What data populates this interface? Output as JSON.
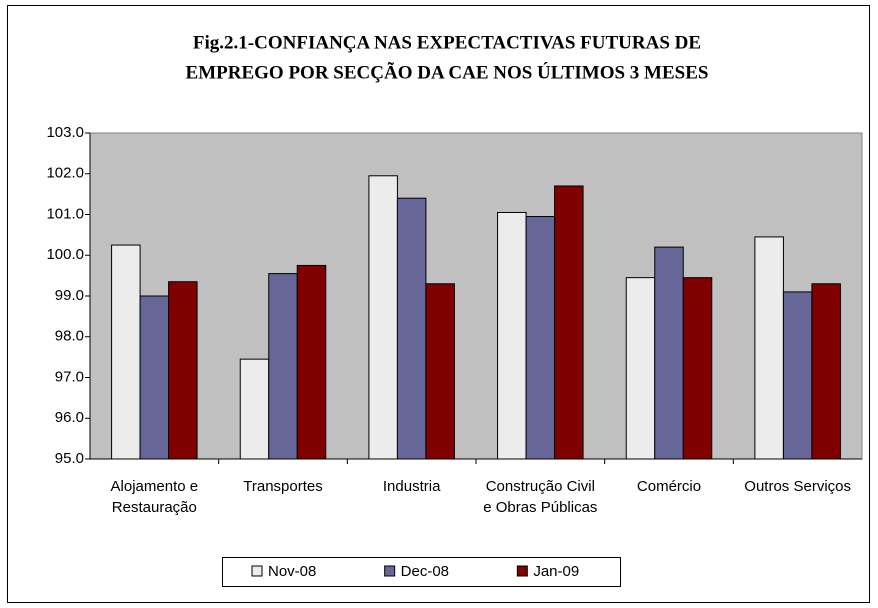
{
  "chart_data": {
    "type": "bar",
    "title": "Fig.2.1-CONFIANÇA NAS EXPECTACTIVAS FUTURAS  DE",
    "subtitle": "EMPREGO POR SECÇÃO DA CAE NOS ÚLTIMOS 3 MESES",
    "categories": [
      "Alojamento e Restauração",
      "Transportes",
      "Industria",
      "Construção Civil e Obras Públicas",
      "Comércio",
      "Outros Serviços"
    ],
    "series": [
      {
        "name": "Nov-08",
        "color": "#ececec",
        "values": [
          100.25,
          97.45,
          101.95,
          101.05,
          99.45,
          100.45
        ]
      },
      {
        "name": "Dec-08",
        "color": "#666699",
        "values": [
          99.0,
          99.55,
          101.4,
          100.95,
          100.2,
          99.1
        ]
      },
      {
        "name": "Jan-09",
        "color": "#800000",
        "values": [
          99.35,
          99.75,
          99.3,
          101.7,
          99.45,
          99.3
        ]
      }
    ],
    "ylim": [
      95,
      103
    ],
    "yticks": [
      {
        "value": 95,
        "label": "95.0"
      },
      {
        "value": 96,
        "label": "96.0"
      },
      {
        "value": 97,
        "label": "97.0"
      },
      {
        "value": 98,
        "label": "98.0"
      },
      {
        "value": 99,
        "label": "99.0"
      },
      {
        "value": 100,
        "label": "100.0"
      },
      {
        "value": 101,
        "label": "101.0"
      },
      {
        "value": 102,
        "label": "102.0"
      },
      {
        "value": 103,
        "label": "103.0"
      }
    ],
    "grid": false,
    "plot_background": "#c0c0c0",
    "legend": "bottom"
  }
}
